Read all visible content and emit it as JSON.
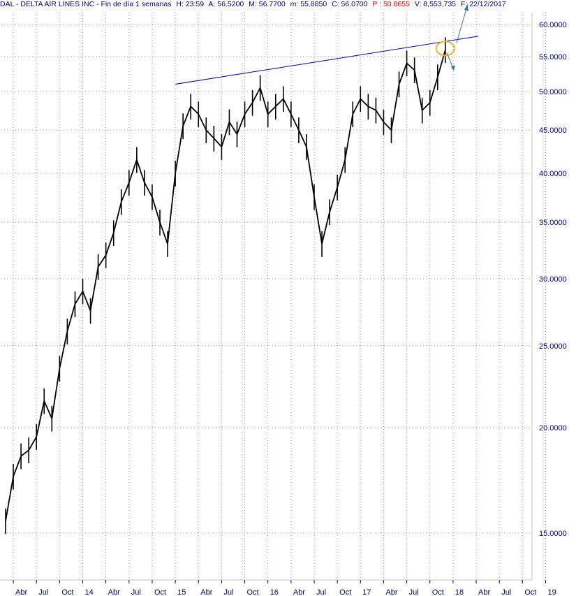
{
  "header": {
    "symbol": "DAL - DELTA AIR LINES INC - Fin de día 1 semanas",
    "h": "H: 23:59",
    "a": "A: 56.5200",
    "m_high": "M: 56.7700",
    "m_low": "m: 55.8850",
    "c": "C: 56.0700",
    "p": "P : 50.8655",
    "v": "V: 8,553,735",
    "f": "F: 22/12/2017"
  },
  "colors": {
    "candles": "#000000",
    "trendline": "#0000a0",
    "axis_text": "#000080",
    "circle": "#f0b020",
    "arrow": "#3a7a9a"
  },
  "chart_data": {
    "type": "line",
    "title": "DAL - DELTA AIR LINES INC",
    "y_scale": "log",
    "ylim": [
      13.2,
      62
    ],
    "y_ticks": [
      15,
      20,
      25,
      30,
      35,
      40,
      45,
      50,
      55,
      60
    ],
    "y_tick_labels": [
      "15.0000",
      "20.0000",
      "25.0000",
      "30.0000",
      "35.0000",
      "40.0000",
      "45.0000",
      "50.0000",
      "55.0000",
      "60.0000"
    ],
    "x_ticks": [
      "Abr",
      "Jul",
      "Oct",
      "14",
      "Abr",
      "Jul",
      "Oct",
      "15",
      "Abr",
      "Jul",
      "Oct",
      "16",
      "Abr",
      "Jul",
      "Oct",
      "17",
      "Abr",
      "Jul",
      "Oct",
      "18",
      "Abr",
      "Jul",
      "Oct",
      "19"
    ],
    "grid": true,
    "series": [
      {
        "x": [
          "2013-03",
          "2013-04",
          "2013-05",
          "2013-06",
          "2013-07",
          "2013-08",
          "2013-09",
          "2013-10",
          "2013-11",
          "2013-12",
          "2014-01",
          "2014-02",
          "2014-03",
          "2014-04",
          "2014-05",
          "2014-06",
          "2014-07",
          "2014-08",
          "2014-09",
          "2014-10",
          "2014-11",
          "2014-12",
          "2015-01",
          "2015-02",
          "2015-03",
          "2015-04",
          "2015-05",
          "2015-06",
          "2015-07",
          "2015-08",
          "2015-09",
          "2015-10",
          "2015-11",
          "2015-12",
          "2016-01",
          "2016-02",
          "2016-03",
          "2016-04",
          "2016-05",
          "2016-06",
          "2016-07",
          "2016-08",
          "2016-09",
          "2016-10",
          "2016-11",
          "2016-12",
          "2017-01",
          "2017-02",
          "2017-03",
          "2017-04",
          "2017-05",
          "2017-06",
          "2017-07",
          "2017-08",
          "2017-09",
          "2017-10",
          "2017-11",
          "2017-12"
        ],
        "values": [
          15.5,
          17.5,
          18.5,
          18.8,
          19.5,
          21.5,
          20.5,
          23.5,
          26,
          28,
          29,
          27.5,
          31,
          32,
          34,
          37,
          39,
          41.5,
          39,
          37.5,
          35,
          33,
          40,
          45.5,
          48,
          47,
          45,
          44,
          43,
          46,
          44.5,
          47,
          48.5,
          50.5,
          47,
          48,
          49,
          47,
          45,
          43,
          37.5,
          33,
          36,
          38.5,
          41.5,
          47,
          49,
          48,
          47.5,
          46,
          45,
          51,
          54,
          53,
          47.5,
          48.5,
          52,
          56
        ]
      }
    ],
    "trendline": {
      "x": [
        "2015-01",
        "2018-01"
      ],
      "values": [
        51,
        57.5
      ]
    }
  }
}
